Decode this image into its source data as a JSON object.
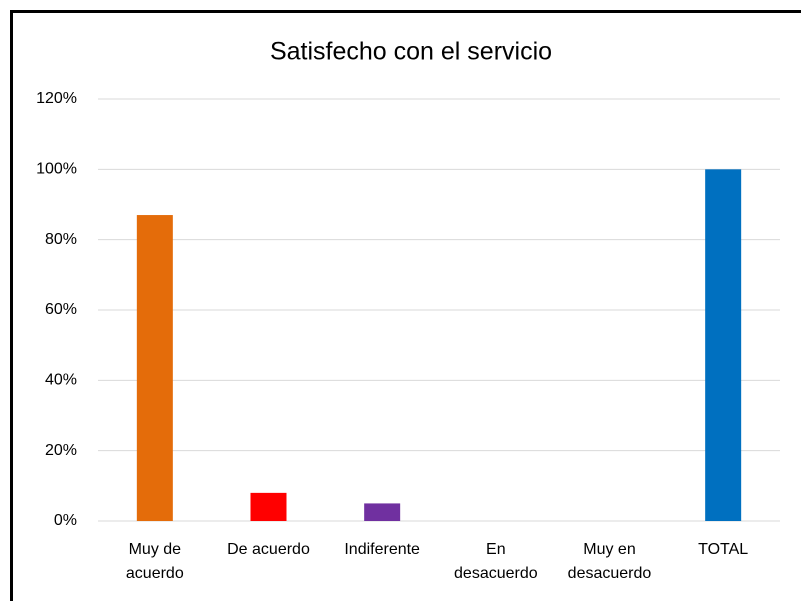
{
  "chart_data": {
    "type": "bar",
    "title": "Satisfecho con el servicio",
    "categories": [
      "Muy de acuerdo",
      "De acuerdo",
      "Indiferente",
      "En desacuerdo",
      "Muy en desacuerdo",
      "TOTAL"
    ],
    "values": [
      87,
      8,
      5,
      0,
      0,
      100
    ],
    "colors": [
      "#e46c0a",
      "#ff0000",
      "#7030a0",
      null,
      null,
      "#0070c0"
    ],
    "ylim": [
      0,
      120
    ],
    "yticks": [
      {
        "value": 0,
        "label": "0%"
      },
      {
        "value": 20,
        "label": "20%"
      },
      {
        "value": 40,
        "label": "40%"
      },
      {
        "value": 60,
        "label": "60%"
      },
      {
        "value": 80,
        "label": "80%"
      },
      {
        "value": 100,
        "label": "100%"
      },
      {
        "value": 120,
        "label": "120%"
      }
    ],
    "grid": true
  }
}
